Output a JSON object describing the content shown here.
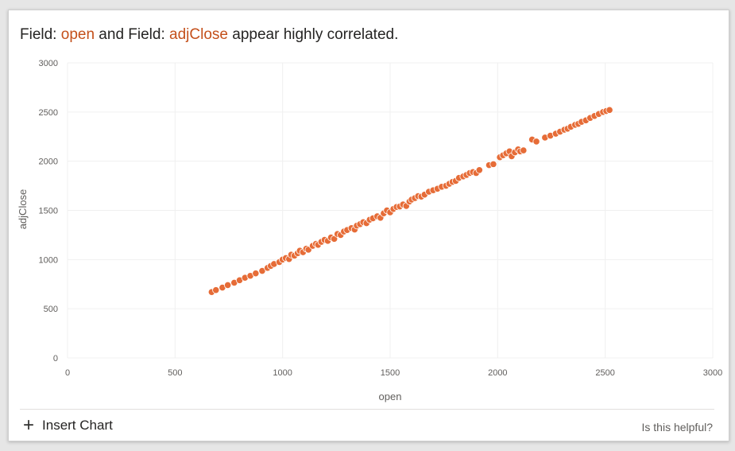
{
  "insight": {
    "prefix": "Field: ",
    "field1": "open",
    "middle": " and Field: ",
    "field2": "adjClose",
    "suffix": " appear highly correlated."
  },
  "footer": {
    "insert_label": "Insert Chart",
    "helpful_label": "Is this helpful?"
  },
  "colors": {
    "accent": "#c4501b",
    "point": "#e66c37",
    "grid": "#f0f0f0"
  },
  "icons": {
    "insert": "plus-icon"
  },
  "chart_data": {
    "type": "scatter",
    "title": "",
    "xlabel": "open",
    "ylabel": "adjClose",
    "xlim": [
      0,
      3000
    ],
    "ylim": [
      0,
      3000
    ],
    "xticks": [
      0,
      500,
      1000,
      1500,
      2000,
      2500,
      3000
    ],
    "yticks": [
      0,
      500,
      1000,
      1500,
      2000,
      2500,
      3000
    ],
    "grid": true,
    "series": [
      {
        "points": [
          [
            670,
            670
          ],
          [
            690,
            690
          ],
          [
            720,
            715
          ],
          [
            745,
            740
          ],
          [
            775,
            765
          ],
          [
            800,
            790
          ],
          [
            825,
            815
          ],
          [
            850,
            835
          ],
          [
            875,
            860
          ],
          [
            905,
            885
          ],
          [
            930,
            915
          ],
          [
            945,
            935
          ],
          [
            960,
            955
          ],
          [
            985,
            975
          ],
          [
            1000,
            1000
          ],
          [
            1015,
            1015
          ],
          [
            1030,
            1005
          ],
          [
            1040,
            1050
          ],
          [
            1055,
            1040
          ],
          [
            1070,
            1065
          ],
          [
            1080,
            1090
          ],
          [
            1095,
            1075
          ],
          [
            1110,
            1110
          ],
          [
            1120,
            1100
          ],
          [
            1140,
            1140
          ],
          [
            1155,
            1160
          ],
          [
            1165,
            1150
          ],
          [
            1180,
            1180
          ],
          [
            1195,
            1200
          ],
          [
            1210,
            1190
          ],
          [
            1225,
            1225
          ],
          [
            1240,
            1210
          ],
          [
            1255,
            1260
          ],
          [
            1270,
            1250
          ],
          [
            1285,
            1285
          ],
          [
            1300,
            1300
          ],
          [
            1320,
            1320
          ],
          [
            1335,
            1305
          ],
          [
            1345,
            1345
          ],
          [
            1360,
            1360
          ],
          [
            1375,
            1380
          ],
          [
            1390,
            1370
          ],
          [
            1405,
            1405
          ],
          [
            1420,
            1420
          ],
          [
            1440,
            1440
          ],
          [
            1455,
            1425
          ],
          [
            1470,
            1470
          ],
          [
            1485,
            1500
          ],
          [
            1500,
            1480
          ],
          [
            1515,
            1515
          ],
          [
            1530,
            1535
          ],
          [
            1545,
            1540
          ],
          [
            1560,
            1560
          ],
          [
            1575,
            1545
          ],
          [
            1590,
            1590
          ],
          [
            1600,
            1610
          ],
          [
            1615,
            1625
          ],
          [
            1630,
            1645
          ],
          [
            1645,
            1640
          ],
          [
            1660,
            1660
          ],
          [
            1680,
            1690
          ],
          [
            1700,
            1705
          ],
          [
            1720,
            1720
          ],
          [
            1740,
            1740
          ],
          [
            1760,
            1750
          ],
          [
            1775,
            1770
          ],
          [
            1790,
            1790
          ],
          [
            1805,
            1800
          ],
          [
            1820,
            1830
          ],
          [
            1840,
            1845
          ],
          [
            1855,
            1860
          ],
          [
            1870,
            1880
          ],
          [
            1885,
            1890
          ],
          [
            1900,
            1880
          ],
          [
            1915,
            1910
          ],
          [
            1960,
            1960
          ],
          [
            1980,
            1970
          ],
          [
            2010,
            2040
          ],
          [
            2025,
            2060
          ],
          [
            2040,
            2080
          ],
          [
            2055,
            2100
          ],
          [
            2065,
            2050
          ],
          [
            2080,
            2090
          ],
          [
            2095,
            2120
          ],
          [
            2105,
            2100
          ],
          [
            2120,
            2110
          ],
          [
            2160,
            2220
          ],
          [
            2180,
            2200
          ],
          [
            2220,
            2240
          ],
          [
            2245,
            2260
          ],
          [
            2270,
            2280
          ],
          [
            2290,
            2300
          ],
          [
            2310,
            2320
          ],
          [
            2325,
            2330
          ],
          [
            2340,
            2350
          ],
          [
            2360,
            2370
          ],
          [
            2375,
            2380
          ],
          [
            2390,
            2400
          ],
          [
            2410,
            2415
          ],
          [
            2430,
            2440
          ],
          [
            2450,
            2460
          ],
          [
            2470,
            2480
          ],
          [
            2490,
            2500
          ],
          [
            2505,
            2510
          ],
          [
            2520,
            2520
          ]
        ]
      }
    ]
  }
}
